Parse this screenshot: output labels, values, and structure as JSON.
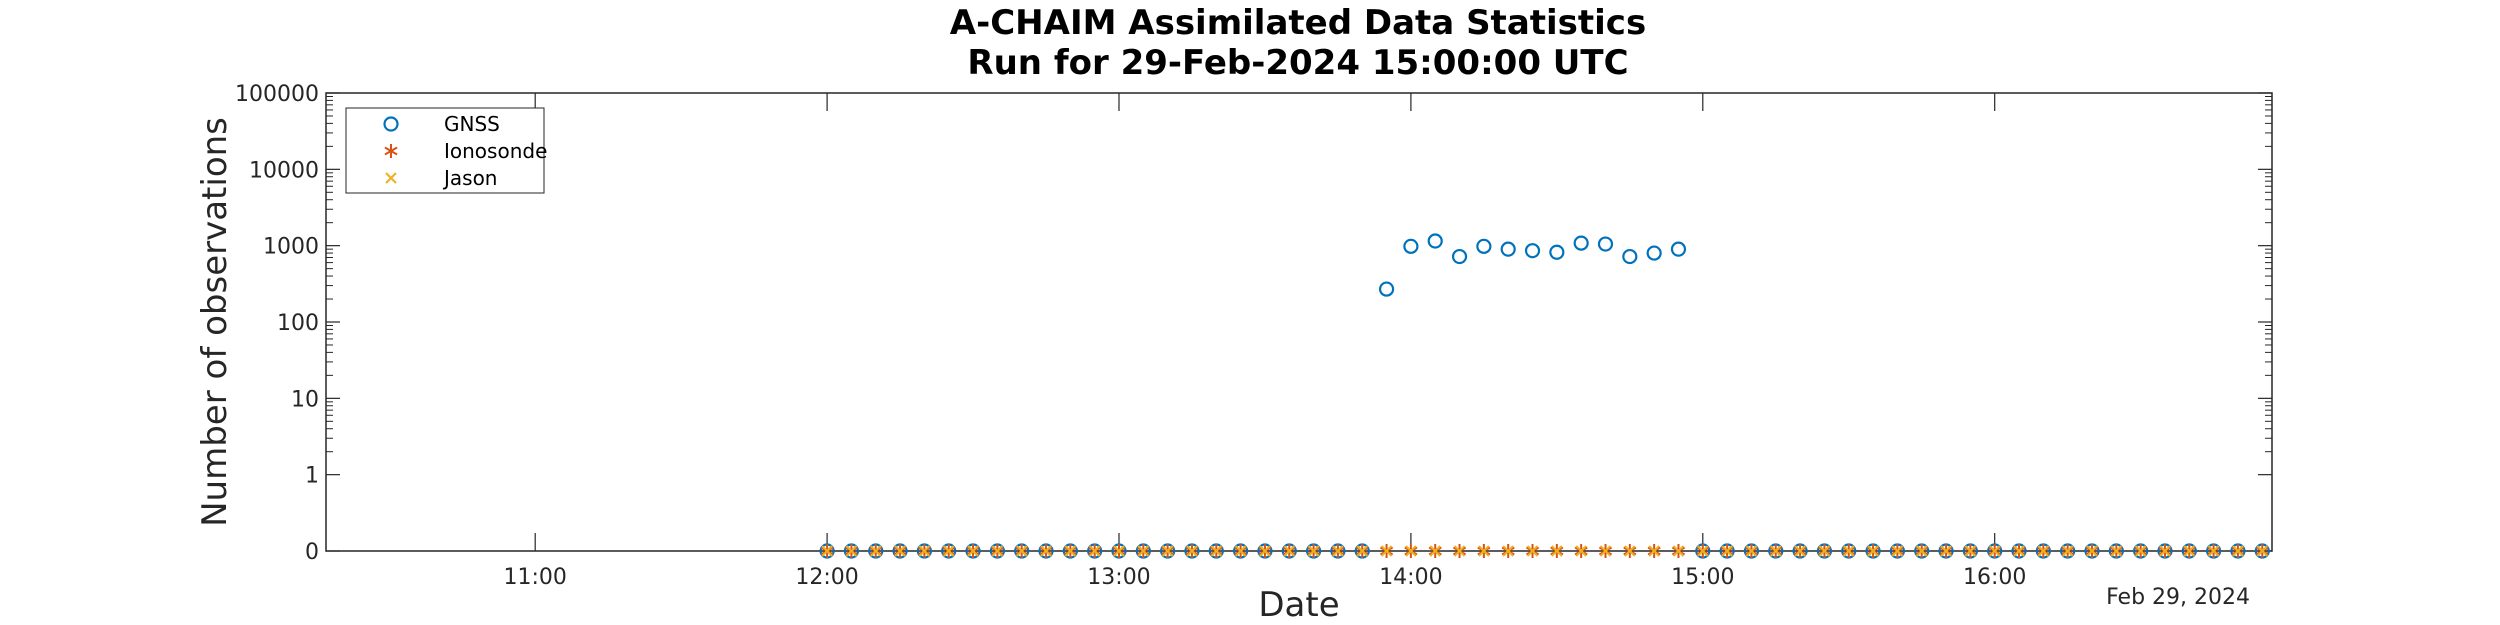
{
  "chart_data": {
    "type": "scatter",
    "title": "A-CHAIM Assimilated Data Statistics",
    "subtitle": "Run for 29-Feb-2024 15:00:00 UTC",
    "xlabel": "Date",
    "ylabel": "Number of observations",
    "date_label": "Feb 29, 2024",
    "yscale": "log (0 drawn at bottom)",
    "xlim": [
      "10:17",
      "16:57"
    ],
    "ylim": [
      0,
      100000
    ],
    "xticks": [
      "11:00",
      "12:00",
      "13:00",
      "14:00",
      "15:00",
      "16:00"
    ],
    "yticks": [
      "0",
      "1",
      "10",
      "100",
      "1000",
      "10000",
      "100000"
    ],
    "legend_position": "top-left",
    "colors": {
      "gnss": "#0072BD",
      "ionosonde": "#D95319",
      "jason": "#EDB120",
      "axis": "#262626"
    },
    "series": [
      {
        "name": "GNSS",
        "marker": "circle",
        "x": [
          "12:00",
          "12:05",
          "12:10",
          "12:15",
          "12:20",
          "12:25",
          "12:30",
          "12:35",
          "12:40",
          "12:45",
          "12:50",
          "12:55",
          "13:00",
          "13:05",
          "13:10",
          "13:15",
          "13:20",
          "13:25",
          "13:30",
          "13:35",
          "13:40",
          "13:45",
          "13:50",
          "13:55",
          "14:00",
          "14:05",
          "14:10",
          "14:15",
          "14:20",
          "14:25",
          "14:30",
          "14:35",
          "14:40",
          "14:45",
          "14:50",
          "14:55",
          "15:00",
          "15:05",
          "15:10",
          "15:15",
          "15:20",
          "15:25",
          "15:30",
          "15:35",
          "15:40",
          "15:45",
          "15:50",
          "15:55",
          "16:00",
          "16:05",
          "16:10",
          "16:15",
          "16:20",
          "16:25",
          "16:30",
          "16:35",
          "16:40",
          "16:45",
          "16:50",
          "16:55"
        ],
        "y": [
          0,
          0,
          0,
          0,
          0,
          0,
          0,
          0,
          0,
          0,
          0,
          0,
          0,
          0,
          0,
          0,
          0,
          0,
          0,
          0,
          0,
          0,
          0,
          270,
          980,
          1150,
          720,
          980,
          900,
          860,
          820,
          1080,
          1050,
          720,
          800,
          900,
          0,
          0,
          0,
          0,
          0,
          0,
          0,
          0,
          0,
          0,
          0,
          0,
          0,
          0,
          0,
          0,
          0,
          0,
          0,
          0,
          0,
          0,
          0,
          0
        ]
      },
      {
        "name": "Ionosonde",
        "marker": "asterisk",
        "x": [
          "12:00",
          "12:05",
          "12:10",
          "12:15",
          "12:20",
          "12:25",
          "12:30",
          "12:35",
          "12:40",
          "12:45",
          "12:50",
          "12:55",
          "13:00",
          "13:05",
          "13:10",
          "13:15",
          "13:20",
          "13:25",
          "13:30",
          "13:35",
          "13:40",
          "13:45",
          "13:50",
          "13:55",
          "14:00",
          "14:05",
          "14:10",
          "14:15",
          "14:20",
          "14:25",
          "14:30",
          "14:35",
          "14:40",
          "14:45",
          "14:50",
          "14:55",
          "15:00",
          "15:05",
          "15:10",
          "15:15",
          "15:20",
          "15:25",
          "15:30",
          "15:35",
          "15:40",
          "15:45",
          "15:50",
          "15:55",
          "16:00",
          "16:05",
          "16:10",
          "16:15",
          "16:20",
          "16:25",
          "16:30",
          "16:35",
          "16:40",
          "16:45",
          "16:50",
          "16:55"
        ],
        "y": [
          0,
          0,
          0,
          0,
          0,
          0,
          0,
          0,
          0,
          0,
          0,
          0,
          0,
          0,
          0,
          0,
          0,
          0,
          0,
          0,
          0,
          0,
          0,
          0,
          0,
          0,
          0,
          0,
          0,
          0,
          0,
          0,
          0,
          0,
          0,
          0,
          0,
          0,
          0,
          0,
          0,
          0,
          0,
          0,
          0,
          0,
          0,
          0,
          0,
          0,
          0,
          0,
          0,
          0,
          0,
          0,
          0,
          0,
          0,
          0
        ]
      },
      {
        "name": "Jason",
        "marker": "x",
        "x": [
          "12:00",
          "12:05",
          "12:10",
          "12:15",
          "12:20",
          "12:25",
          "12:30",
          "12:35",
          "12:40",
          "12:45",
          "12:50",
          "12:55",
          "13:00",
          "13:05",
          "13:10",
          "13:15",
          "13:20",
          "13:25",
          "13:30",
          "13:35",
          "13:40",
          "13:45",
          "13:50",
          "13:55",
          "14:00",
          "14:05",
          "14:10",
          "14:15",
          "14:20",
          "14:25",
          "14:30",
          "14:35",
          "14:40",
          "14:45",
          "14:50",
          "14:55",
          "15:00",
          "15:05",
          "15:10",
          "15:15",
          "15:20",
          "15:25",
          "15:30",
          "15:35",
          "15:40",
          "15:45",
          "15:50",
          "15:55",
          "16:00",
          "16:05",
          "16:10",
          "16:15",
          "16:20",
          "16:25",
          "16:30",
          "16:35",
          "16:40",
          "16:45",
          "16:50",
          "16:55"
        ],
        "y": [
          0,
          0,
          0,
          0,
          0,
          0,
          0,
          0,
          0,
          0,
          0,
          0,
          0,
          0,
          0,
          0,
          0,
          0,
          0,
          0,
          0,
          0,
          0,
          0,
          0,
          0,
          0,
          0,
          0,
          0,
          0,
          0,
          0,
          0,
          0,
          0,
          0,
          0,
          0,
          0,
          0,
          0,
          0,
          0,
          0,
          0,
          0,
          0,
          0,
          0,
          0,
          0,
          0,
          0,
          0,
          0,
          0,
          0,
          0,
          0
        ]
      }
    ]
  }
}
